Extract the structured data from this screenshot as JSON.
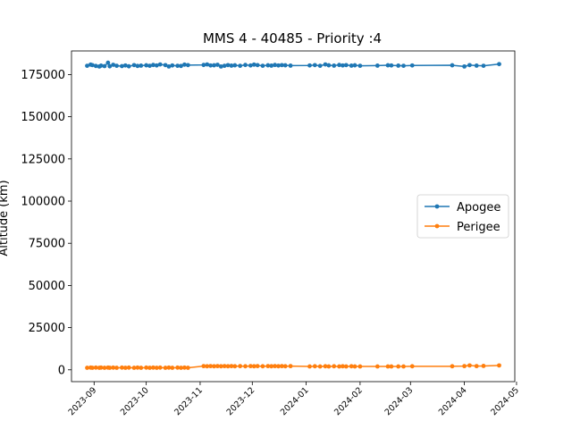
{
  "chart_data": {
    "type": "line",
    "title": "MMS 4 - 40485 - Priority :4",
    "xlabel": "",
    "ylabel": "Altitude (km)",
    "x_type": "date",
    "xlim": [
      "2023-08-19",
      "2024-04-30"
    ],
    "ylim": [
      -7000,
      189000
    ],
    "yticks": [
      0,
      25000,
      50000,
      75000,
      100000,
      125000,
      150000,
      175000
    ],
    "xticks": [
      "2023-09-01",
      "2023-10-01",
      "2023-11-01",
      "2023-12-01",
      "2024-01-01",
      "2024-02-01",
      "2024-03-01",
      "2024-04-01",
      "2024-05-01"
    ],
    "xtick_labels": [
      "2023-09",
      "2023-10",
      "2023-11",
      "2023-12",
      "2024-01",
      "2024-02",
      "2024-03",
      "2024-04",
      "2024-05"
    ],
    "grid": false,
    "legend_position": "center-right",
    "x": [
      "2023-08-28",
      "2023-08-30",
      "2023-08-31",
      "2023-09-02",
      "2023-09-04",
      "2023-09-05",
      "2023-09-07",
      "2023-09-09",
      "2023-09-10",
      "2023-09-12",
      "2023-09-14",
      "2023-09-17",
      "2023-09-19",
      "2023-09-21",
      "2023-09-24",
      "2023-09-26",
      "2023-09-28",
      "2023-10-01",
      "2023-10-03",
      "2023-10-05",
      "2023-10-07",
      "2023-10-09",
      "2023-10-12",
      "2023-10-14",
      "2023-10-16",
      "2023-10-19",
      "2023-10-21",
      "2023-10-23",
      "2023-10-25",
      "2023-11-03",
      "2023-11-05",
      "2023-11-07",
      "2023-11-09",
      "2023-11-11",
      "2023-11-13",
      "2023-11-15",
      "2023-11-17",
      "2023-11-19",
      "2023-11-21",
      "2023-11-24",
      "2023-11-27",
      "2023-11-30",
      "2023-12-02",
      "2023-12-04",
      "2023-12-07",
      "2023-12-10",
      "2023-12-12",
      "2023-12-14",
      "2023-12-16",
      "2023-12-18",
      "2023-12-20",
      "2023-12-23",
      "2024-01-03",
      "2024-01-06",
      "2024-01-09",
      "2024-01-12",
      "2024-01-14",
      "2024-01-17",
      "2024-01-20",
      "2024-01-22",
      "2024-01-24",
      "2024-01-27",
      "2024-01-29",
      "2024-02-01",
      "2024-02-11",
      "2024-02-17",
      "2024-02-19",
      "2024-02-23",
      "2024-02-26",
      "2024-03-02",
      "2024-03-25",
      "2024-04-01",
      "2024-04-04",
      "2024-04-08",
      "2024-04-12",
      "2024-04-21"
    ],
    "series": [
      {
        "name": "Apogee",
        "color": "#1f77b4",
        "values": [
          180200,
          180900,
          180600,
          180100,
          179800,
          180300,
          180000,
          182000,
          179900,
          180800,
          180200,
          180000,
          180400,
          179900,
          180600,
          180100,
          180300,
          180500,
          180200,
          180700,
          180400,
          181000,
          180600,
          179800,
          180400,
          180200,
          180100,
          180900,
          180600,
          180700,
          181000,
          180400,
          180500,
          180800,
          179800,
          180200,
          180600,
          180300,
          180500,
          180200,
          180700,
          180400,
          180900,
          180600,
          180200,
          180500,
          180300,
          180700,
          180400,
          180600,
          180500,
          180300,
          180400,
          180600,
          180200,
          181000,
          180500,
          180300,
          180700,
          180400,
          180600,
          180300,
          180500,
          180200,
          180300,
          180500,
          180400,
          180300,
          180200,
          180400,
          180500,
          179800,
          180600,
          180300,
          180200,
          181200
        ]
      },
      {
        "name": "Perigee",
        "color": "#ff7f0e",
        "values": [
          1200,
          1300,
          1200,
          1300,
          1200,
          1300,
          1200,
          1300,
          1200,
          1300,
          1200,
          1300,
          1200,
          1300,
          1200,
          1300,
          1200,
          1300,
          1200,
          1300,
          1200,
          1300,
          1200,
          1300,
          1200,
          1300,
          1200,
          1300,
          1200,
          2200,
          2100,
          2200,
          2100,
          2200,
          2100,
          2200,
          2100,
          2200,
          2100,
          2200,
          2100,
          2200,
          2100,
          2200,
          2100,
          2200,
          2100,
          2200,
          2100,
          2200,
          2100,
          2200,
          2000,
          2100,
          2000,
          2100,
          2000,
          2100,
          2000,
          2100,
          2000,
          2100,
          2000,
          2000,
          2000,
          2000,
          2000,
          2000,
          2000,
          2100,
          2100,
          2200,
          2600,
          2200,
          2300,
          2600
        ]
      }
    ]
  }
}
